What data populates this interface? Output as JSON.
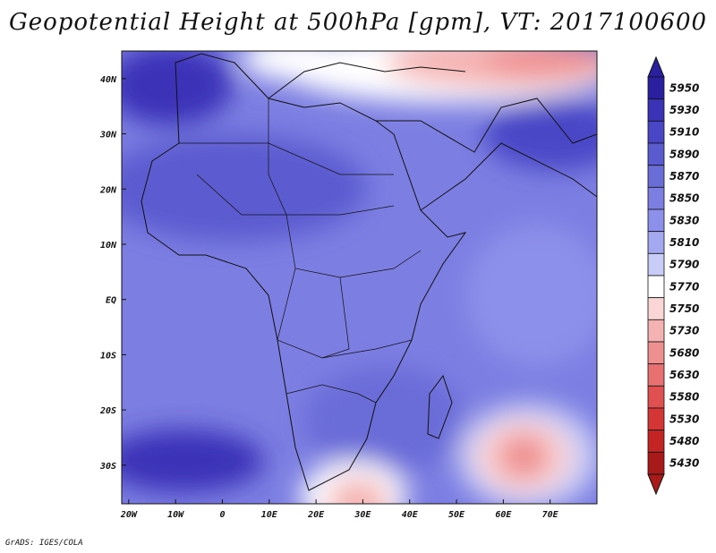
{
  "title": "Geopotential Height at 500hPa [gpm], VT: 2017100600",
  "credit": "GrADS: IGES/COLA",
  "axes": {
    "lat_labels": [
      "40N",
      "30N",
      "20N",
      "10N",
      "EQ",
      "10S",
      "20S",
      "30S"
    ],
    "lat_values": [
      40,
      30,
      20,
      10,
      0,
      -10,
      -20,
      -30
    ],
    "lon_labels": [
      "20W",
      "10W",
      "0",
      "10E",
      "20E",
      "30E",
      "40E",
      "50E",
      "60E",
      "70E"
    ],
    "lon_values": [
      -20,
      -10,
      0,
      10,
      20,
      30,
      40,
      50,
      60,
      70
    ],
    "lon_range": [
      -21.5,
      80
    ],
    "lat_range": [
      -37,
      45
    ]
  },
  "colorbar": {
    "levels": [
      "5950",
      "5930",
      "5910",
      "5890",
      "5870",
      "5850",
      "5830",
      "5810",
      "5790",
      "5770",
      "5750",
      "5730",
      "5680",
      "5630",
      "5580",
      "5530",
      "5480",
      "5430"
    ],
    "colors": [
      "#2a1f9e",
      "#3a33b8",
      "#4a47c6",
      "#5b5bd0",
      "#6a6cd8",
      "#7c7ee2",
      "#8d90ea",
      "#a4a8f0",
      "#c8ccf6",
      "#ffffff",
      "#fbd6d6",
      "#f5b2b2",
      "#ef9090",
      "#e87070",
      "#e05050",
      "#d43636",
      "#c42424",
      "#a81a1a"
    ],
    "top_arrow_color": "#2a1f9e",
    "bottom_arrow_color": "#a81a1a"
  }
}
